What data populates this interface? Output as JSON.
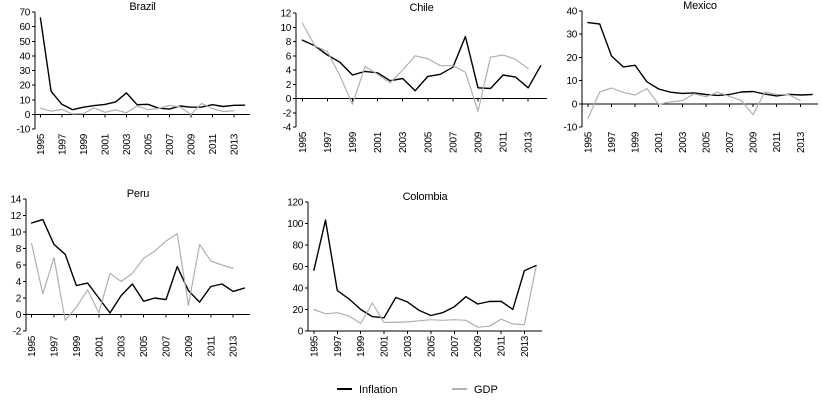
{
  "page": {
    "background": "#ffffff"
  },
  "legend": {
    "items": [
      {
        "label": "Inflation",
        "color": "#000000"
      },
      {
        "label": "GDP",
        "color": "#b0b0b0"
      }
    ]
  },
  "chart_data": [
    {
      "type": "line",
      "title": "Brazil",
      "x": [
        1995,
        1996,
        1997,
        1998,
        1999,
        2000,
        2001,
        2002,
        2003,
        2004,
        2005,
        2006,
        2007,
        2008,
        2009,
        2010,
        2011,
        2012,
        2013,
        2014
      ],
      "x_tick_labels": [
        "1995",
        "1997",
        "1999",
        "2001",
        "2003",
        "2005",
        "2007",
        "2009",
        "2011",
        "2013"
      ],
      "ylim": [
        -10,
        70
      ],
      "yticks": [
        70,
        60,
        50,
        40,
        30,
        20,
        10,
        0,
        -10
      ],
      "grid": false,
      "legend_position": "bottom-shared",
      "series": [
        {
          "name": "Inflation",
          "color": "#000000",
          "values": [
            66.0,
            15.8,
            6.9,
            3.2,
            4.9,
            6.0,
            6.8,
            8.5,
            14.7,
            6.6,
            6.9,
            4.2,
            3.6,
            5.7,
            4.9,
            5.0,
            6.6,
            5.4,
            6.2,
            6.3
          ]
        },
        {
          "name": "GDP",
          "color": "#b0b0b0",
          "values": [
            4.2,
            2.2,
            3.4,
            0.3,
            0.5,
            4.4,
            1.4,
            3.1,
            1.1,
            5.8,
            3.2,
            4.0,
            6.1,
            5.1,
            -0.1,
            7.5,
            4.0,
            1.9,
            2.5,
            null
          ]
        }
      ]
    },
    {
      "type": "line",
      "title": "Chile",
      "x": [
        1995,
        1996,
        1997,
        1998,
        1999,
        2000,
        2001,
        2002,
        2003,
        2004,
        2005,
        2006,
        2007,
        2008,
        2009,
        2010,
        2011,
        2012,
        2013,
        2014
      ],
      "x_tick_labels": [
        "1995",
        "1997",
        "1999",
        "2001",
        "2003",
        "2005",
        "2007",
        "2009",
        "2011",
        "2013"
      ],
      "ylim": [
        -4,
        12
      ],
      "yticks": [
        12,
        10,
        8,
        6,
        4,
        2,
        0,
        -2,
        -4
      ],
      "grid": false,
      "legend_position": "bottom-shared",
      "series": [
        {
          "name": "Inflation",
          "color": "#000000",
          "values": [
            8.2,
            7.4,
            6.1,
            5.1,
            3.3,
            3.8,
            3.6,
            2.5,
            2.8,
            1.1,
            3.1,
            3.4,
            4.4,
            8.7,
            1.5,
            1.4,
            3.3,
            3.0,
            1.5,
            4.6
          ]
        },
        {
          "name": "GDP",
          "color": "#b0b0b0",
          "values": [
            10.6,
            7.4,
            6.6,
            3.2,
            -0.8,
            4.5,
            3.4,
            2.2,
            4.0,
            6.0,
            5.6,
            4.6,
            4.6,
            3.7,
            -1.8,
            5.8,
            6.1,
            5.5,
            4.2,
            null
          ]
        }
      ]
    },
    {
      "type": "line",
      "title": "Mexico",
      "x": [
        1995,
        1996,
        1997,
        1998,
        1999,
        2000,
        2001,
        2002,
        2003,
        2004,
        2005,
        2006,
        2007,
        2008,
        2009,
        2010,
        2011,
        2012,
        2013,
        2014
      ],
      "x_tick_labels": [
        "1995",
        "1997",
        "1999",
        "2001",
        "2003",
        "2005",
        "2007",
        "2009",
        "2011",
        "2013"
      ],
      "ylim": [
        -10,
        40
      ],
      "yticks": [
        40,
        30,
        20,
        10,
        0,
        -10
      ],
      "grid": false,
      "legend_position": "bottom-shared",
      "series": [
        {
          "name": "Inflation",
          "color": "#000000",
          "values": [
            35.0,
            34.4,
            20.6,
            15.9,
            16.6,
            9.5,
            6.4,
            5.0,
            4.5,
            4.7,
            4.0,
            3.6,
            4.0,
            5.1,
            5.3,
            4.2,
            3.4,
            4.1,
            3.8,
            4.0
          ]
        },
        {
          "name": "GDP",
          "color": "#b0b0b0",
          "values": [
            -6.3,
            5.1,
            6.8,
            4.9,
            3.8,
            6.6,
            -0.2,
            0.8,
            1.4,
            4.3,
            3.0,
            5.0,
            3.2,
            1.4,
            -4.7,
            5.1,
            4.0,
            4.0,
            1.4,
            null
          ]
        }
      ]
    },
    {
      "type": "line",
      "title": "Peru",
      "x": [
        1995,
        1996,
        1997,
        1998,
        1999,
        2000,
        2001,
        2002,
        2003,
        2004,
        2005,
        2006,
        2007,
        2008,
        2009,
        2010,
        2011,
        2012,
        2013,
        2014
      ],
      "x_tick_labels": [
        "1995",
        "1997",
        "1999",
        "2001",
        "2003",
        "2005",
        "2007",
        "2009",
        "2011",
        "2013"
      ],
      "ylim": [
        -2,
        14
      ],
      "yticks": [
        14,
        12,
        10,
        8,
        6,
        4,
        2,
        0,
        -2
      ],
      "grid": false,
      "legend_position": "bottom-shared",
      "series": [
        {
          "name": "Inflation",
          "color": "#000000",
          "values": [
            11.1,
            11.5,
            8.5,
            7.3,
            3.5,
            3.8,
            2.0,
            0.2,
            2.3,
            3.7,
            1.6,
            2.0,
            1.8,
            5.8,
            2.9,
            1.5,
            3.4,
            3.7,
            2.8,
            3.2
          ]
        },
        {
          "name": "GDP",
          "color": "#b0b0b0",
          "values": [
            8.6,
            2.5,
            6.9,
            -0.7,
            0.9,
            3.0,
            0.2,
            5.0,
            4.0,
            5.0,
            6.8,
            7.7,
            8.9,
            9.8,
            1.1,
            8.5,
            6.5,
            6.0,
            5.6,
            null
          ]
        }
      ]
    },
    {
      "type": "line",
      "title": "Colombia",
      "x": [
        1995,
        1996,
        1997,
        1998,
        1999,
        2000,
        2001,
        2002,
        2003,
        2004,
        2005,
        2006,
        2007,
        2008,
        2009,
        2010,
        2011,
        2012,
        2013,
        2014
      ],
      "x_tick_labels": [
        "1995",
        "1997",
        "1999",
        "2001",
        "2003",
        "2005",
        "2007",
        "2009",
        "2011",
        "2013"
      ],
      "ylim": [
        0,
        120
      ],
      "yticks": [
        120,
        100,
        80,
        60,
        40,
        20,
        0
      ],
      "grid": false,
      "legend_position": "bottom-shared",
      "series": [
        {
          "name": "Inflation",
          "color": "#000000",
          "values": [
            56.6,
            103.2,
            37.6,
            29.9,
            20.0,
            13.4,
            12.3,
            31.2,
            27.1,
            19.2,
            14.4,
            17.0,
            22.5,
            31.9,
            25.1,
            27.4,
            27.6,
            20.1,
            56.2,
            60.9
          ]
        },
        {
          "name": "GDP",
          "color": "#b0b0b0",
          "values": [
            20.0,
            16.0,
            17.0,
            14.0,
            7.0,
            26.0,
            8.0,
            8.0,
            8.5,
            9.5,
            10.5,
            10.0,
            10.5,
            10.0,
            3.5,
            4.5,
            11.0,
            6.5,
            6.0,
            60.0
          ]
        }
      ]
    }
  ]
}
